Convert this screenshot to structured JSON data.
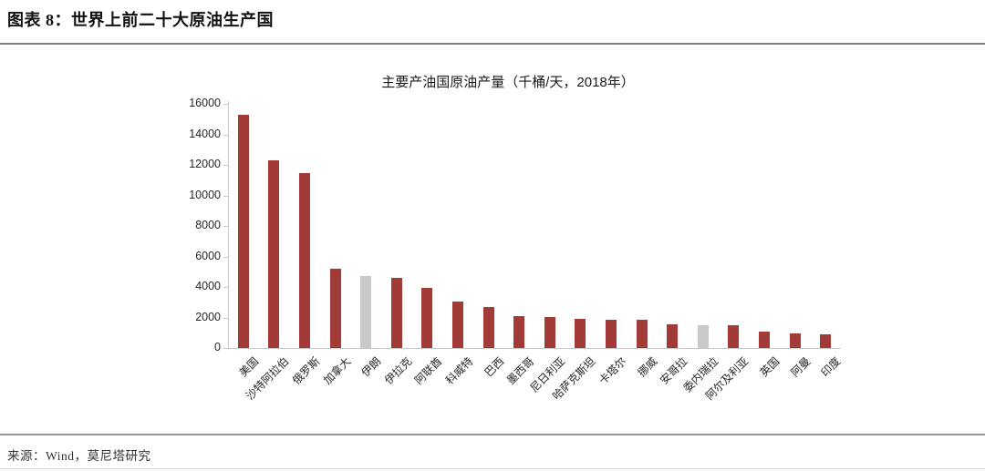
{
  "header": {
    "title": "图表 8：世界上前二十大原油生产国"
  },
  "footer": {
    "source": "来源：Wind，莫尼塔研究"
  },
  "chart_data": {
    "type": "bar",
    "title": "主要产油国原油产量（千桶/天，2018年）",
    "categories": [
      "美国",
      "沙特阿拉伯",
      "俄罗斯",
      "加拿大",
      "伊朗",
      "伊拉克",
      "阿联酋",
      "科威特",
      "巴西",
      "墨西哥",
      "尼日利亚",
      "哈萨克斯坦",
      "卡塔尔",
      "挪威",
      "安哥拉",
      "委内瑞拉",
      "阿尔及利亚",
      "英国",
      "阿曼",
      "印度"
    ],
    "values": [
      15311,
      12287,
      11438,
      5208,
      4715,
      4614,
      3942,
      3049,
      2683,
      2068,
      2051,
      1927,
      1879,
      1844,
      1534,
      1514,
      1510,
      1085,
      978,
      869
    ],
    "highlight_indices": [
      4,
      15
    ],
    "highlighted_categories": [
      "伊朗",
      "委内瑞拉"
    ],
    "xlabel": "",
    "ylabel": "",
    "ylim": [
      0,
      16000
    ],
    "yticks": [
      0,
      2000,
      4000,
      6000,
      8000,
      10000,
      12000,
      14000,
      16000
    ],
    "grid": false,
    "legend": "none",
    "x_label_rotation_deg": 45,
    "colors": {
      "bar": "#A23B38",
      "highlight": "#C9C9C9",
      "axis": "#C8C8C8",
      "text": "#262626"
    }
  }
}
